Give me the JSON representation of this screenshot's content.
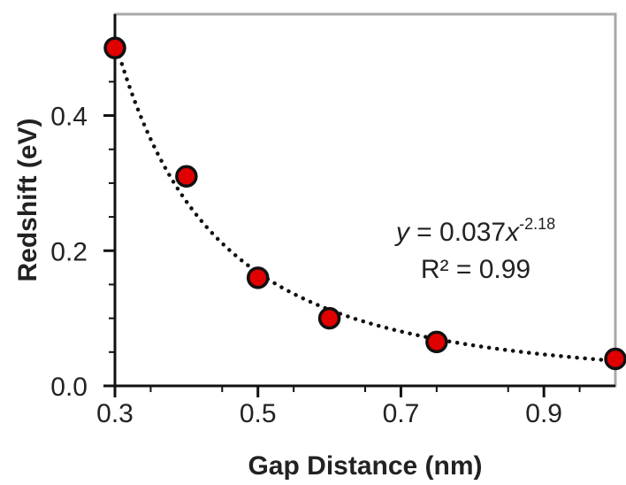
{
  "chart_data": {
    "type": "scatter",
    "xlabel": "Gap Distance (nm)",
    "ylabel": "Redshift (eV)",
    "xlim": [
      0.3,
      1.0
    ],
    "ylim": [
      0.0,
      0.55
    ],
    "x_ticks": [
      {
        "value": 0.3,
        "label": "0.3"
      },
      {
        "value": 0.5,
        "label": "0.5"
      },
      {
        "value": 0.7,
        "label": "0.7"
      },
      {
        "value": 0.9,
        "label": "0.9"
      }
    ],
    "y_ticks": [
      {
        "value": 0.0,
        "label": "0.0"
      },
      {
        "value": 0.2,
        "label": "0.2"
      },
      {
        "value": 0.4,
        "label": "0.4"
      }
    ],
    "series": [
      {
        "x": [
          0.3,
          0.4,
          0.5,
          0.6,
          0.75,
          1.0
        ],
        "y": [
          0.5,
          0.31,
          0.16,
          0.1,
          0.065,
          0.04
        ]
      }
    ],
    "fit": {
      "coefficient": 0.037,
      "exponent": -2.18,
      "equation_prefix": "y",
      "equation_middle": " = 0.037",
      "equation_var": "x",
      "equation_exponent": "-2.18",
      "r_squared_label": "R² = 0.99"
    },
    "grid": false,
    "marker_color": "#e00000",
    "marker_edge_color": "#111111",
    "fit_line_color": "#111111",
    "frame_color": "#a8a8a8"
  }
}
